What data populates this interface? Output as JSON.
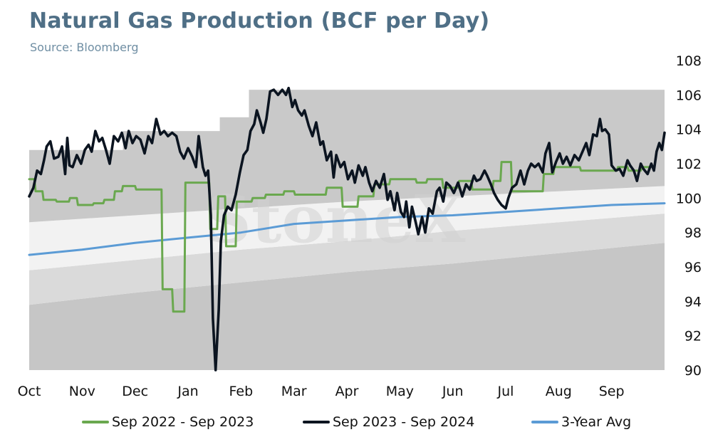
{
  "header": {
    "title": "Natural Gas Production (BCF per Day)",
    "subtitle": "Source: Bloomberg"
  },
  "watermark": "StoneX",
  "chart_data": {
    "type": "line",
    "title": "Natural Gas Production (BCF per Day)",
    "subtitle": "Source: Bloomberg",
    "xlabel": "",
    "ylabel": "",
    "y_axis_side": "right",
    "ylim": [
      90,
      108
    ],
    "xlim": [
      0,
      12
    ],
    "y_ticks": [
      90,
      92,
      94,
      96,
      98,
      100,
      102,
      104,
      106,
      108
    ],
    "categories": [
      "Oct",
      "Nov",
      "Dec",
      "Jan",
      "Feb",
      "Mar",
      "Apr",
      "May",
      "Jun",
      "Jul",
      "Aug",
      "Sep"
    ],
    "grid": false,
    "legend_position": "bottom",
    "bands": {
      "min": [
        [
          0,
          93.8
        ],
        [
          2,
          94.5
        ],
        [
          4,
          95.1
        ],
        [
          6,
          95.7
        ],
        [
          8,
          96.2
        ],
        [
          10,
          96.8
        ],
        [
          12,
          97.4
        ]
      ],
      "avg_low": [
        [
          0,
          95.8
        ],
        [
          2,
          96.4
        ],
        [
          4,
          97.0
        ],
        [
          6,
          97.5
        ],
        [
          8,
          98.1
        ],
        [
          10,
          98.6
        ],
        [
          12,
          99.1
        ]
      ],
      "avg_high": [
        [
          0,
          98.6
        ],
        [
          2,
          99.0
        ],
        [
          4,
          99.4
        ],
        [
          6,
          99.8
        ],
        [
          8,
          100.1
        ],
        [
          10,
          100.4
        ],
        [
          12,
          100.7
        ]
      ],
      "max": [
        [
          0,
          102.8
        ],
        [
          1.77,
          102.8
        ],
        [
          1.77,
          103.9
        ],
        [
          3.6,
          103.9
        ],
        [
          3.6,
          104.7
        ],
        [
          4.15,
          104.7
        ],
        [
          4.15,
          106.3
        ],
        [
          12,
          106.3
        ]
      ]
    },
    "series": [
      {
        "name": "Sep 2022 - Sep 2023",
        "color": "#6aa84f",
        "points": [
          [
            0,
            101.1
          ],
          [
            0.1,
            101.1
          ],
          [
            0.12,
            100.4
          ],
          [
            0.25,
            100.4
          ],
          [
            0.27,
            99.9
          ],
          [
            0.5,
            99.9
          ],
          [
            0.52,
            99.8
          ],
          [
            0.75,
            99.8
          ],
          [
            0.77,
            100.0
          ],
          [
            0.9,
            100.0
          ],
          [
            0.92,
            99.6
          ],
          [
            1.2,
            99.6
          ],
          [
            1.22,
            99.7
          ],
          [
            1.4,
            99.7
          ],
          [
            1.42,
            99.9
          ],
          [
            1.6,
            99.9
          ],
          [
            1.62,
            100.4
          ],
          [
            1.75,
            100.4
          ],
          [
            1.77,
            100.7
          ],
          [
            2.0,
            100.7
          ],
          [
            2.02,
            100.5
          ],
          [
            2.5,
            100.5
          ],
          [
            2.52,
            94.7
          ],
          [
            2.7,
            94.7
          ],
          [
            2.72,
            93.4
          ],
          [
            2.93,
            93.4
          ],
          [
            2.95,
            100.9
          ],
          [
            3.4,
            100.9
          ],
          [
            3.42,
            98.2
          ],
          [
            3.55,
            98.2
          ],
          [
            3.57,
            100.1
          ],
          [
            3.7,
            100.1
          ],
          [
            3.72,
            97.2
          ],
          [
            3.9,
            97.2
          ],
          [
            3.92,
            99.8
          ],
          [
            4.2,
            99.8
          ],
          [
            4.22,
            100.0
          ],
          [
            4.45,
            100.0
          ],
          [
            4.47,
            100.2
          ],
          [
            4.8,
            100.2
          ],
          [
            4.82,
            100.4
          ],
          [
            5.0,
            100.4
          ],
          [
            5.02,
            100.2
          ],
          [
            5.6,
            100.2
          ],
          [
            5.62,
            100.6
          ],
          [
            5.9,
            100.6
          ],
          [
            5.92,
            99.5
          ],
          [
            6.2,
            99.5
          ],
          [
            6.22,
            100.1
          ],
          [
            6.5,
            100.1
          ],
          [
            6.52,
            100.8
          ],
          [
            6.8,
            100.8
          ],
          [
            6.82,
            101.1
          ],
          [
            7.3,
            101.1
          ],
          [
            7.32,
            100.9
          ],
          [
            7.5,
            100.9
          ],
          [
            7.52,
            101.1
          ],
          [
            7.8,
            101.1
          ],
          [
            7.82,
            100.6
          ],
          [
            8.1,
            100.6
          ],
          [
            8.12,
            101.0
          ],
          [
            8.35,
            101.0
          ],
          [
            8.37,
            100.5
          ],
          [
            8.75,
            100.5
          ],
          [
            8.77,
            101.0
          ],
          [
            8.9,
            101.0
          ],
          [
            8.92,
            102.1
          ],
          [
            9.1,
            102.1
          ],
          [
            9.12,
            100.4
          ],
          [
            9.7,
            100.4
          ],
          [
            9.72,
            101.4
          ],
          [
            9.9,
            101.4
          ],
          [
            9.92,
            101.8
          ],
          [
            10.4,
            101.8
          ],
          [
            10.42,
            101.6
          ],
          [
            11.1,
            101.6
          ],
          [
            11.12,
            101.8
          ],
          [
            11.3,
            101.8
          ],
          [
            11.32,
            101.6
          ],
          [
            11.55,
            101.6
          ],
          [
            11.57,
            101.8
          ],
          [
            11.7,
            101.8
          ]
        ]
      },
      {
        "name": "Sep 2023 - Sep 2024",
        "color": "#0b1420",
        "points": [
          [
            0,
            100.1
          ],
          [
            0.08,
            100.6
          ],
          [
            0.15,
            101.6
          ],
          [
            0.22,
            101.4
          ],
          [
            0.28,
            102.2
          ],
          [
            0.33,
            103.0
          ],
          [
            0.4,
            103.3
          ],
          [
            0.47,
            102.3
          ],
          [
            0.55,
            102.4
          ],
          [
            0.62,
            103.0
          ],
          [
            0.68,
            101.4
          ],
          [
            0.72,
            103.5
          ],
          [
            0.76,
            101.9
          ],
          [
            0.82,
            101.8
          ],
          [
            0.9,
            102.5
          ],
          [
            0.98,
            102.0
          ],
          [
            1.05,
            102.8
          ],
          [
            1.12,
            103.1
          ],
          [
            1.18,
            102.7
          ],
          [
            1.25,
            103.9
          ],
          [
            1.32,
            103.3
          ],
          [
            1.38,
            103.5
          ],
          [
            1.45,
            102.8
          ],
          [
            1.52,
            102.0
          ],
          [
            1.6,
            103.6
          ],
          [
            1.68,
            103.3
          ],
          [
            1.75,
            103.8
          ],
          [
            1.82,
            102.9
          ],
          [
            1.88,
            103.9
          ],
          [
            1.95,
            103.2
          ],
          [
            2.02,
            103.6
          ],
          [
            2.1,
            103.4
          ],
          [
            2.18,
            102.6
          ],
          [
            2.25,
            103.6
          ],
          [
            2.32,
            103.2
          ],
          [
            2.4,
            104.6
          ],
          [
            2.48,
            103.7
          ],
          [
            2.55,
            103.9
          ],
          [
            2.62,
            103.6
          ],
          [
            2.7,
            103.8
          ],
          [
            2.78,
            103.6
          ],
          [
            2.85,
            102.7
          ],
          [
            2.92,
            102.3
          ],
          [
            3.0,
            102.9
          ],
          [
            3.08,
            102.4
          ],
          [
            3.15,
            101.8
          ],
          [
            3.2,
            103.6
          ],
          [
            3.28,
            101.8
          ],
          [
            3.33,
            101.3
          ],
          [
            3.38,
            101.6
          ],
          [
            3.43,
            99.0
          ],
          [
            3.47,
            93.0
          ],
          [
            3.52,
            90.0
          ],
          [
            3.58,
            93.5
          ],
          [
            3.62,
            97.5
          ],
          [
            3.68,
            99.0
          ],
          [
            3.75,
            99.5
          ],
          [
            3.82,
            99.3
          ],
          [
            3.9,
            100.2
          ],
          [
            3.98,
            101.5
          ],
          [
            4.05,
            102.5
          ],
          [
            4.12,
            102.8
          ],
          [
            4.18,
            103.9
          ],
          [
            4.25,
            104.3
          ],
          [
            4.3,
            105.1
          ],
          [
            4.37,
            104.4
          ],
          [
            4.42,
            103.8
          ],
          [
            4.48,
            104.6
          ],
          [
            4.55,
            106.2
          ],
          [
            4.62,
            106.3
          ],
          [
            4.7,
            106.0
          ],
          [
            4.78,
            106.3
          ],
          [
            4.85,
            106.0
          ],
          [
            4.9,
            106.4
          ],
          [
            4.97,
            105.3
          ],
          [
            5.02,
            105.7
          ],
          [
            5.08,
            105.1
          ],
          [
            5.15,
            104.8
          ],
          [
            5.2,
            105.1
          ],
          [
            5.28,
            104.2
          ],
          [
            5.35,
            103.6
          ],
          [
            5.42,
            104.4
          ],
          [
            5.5,
            103.1
          ],
          [
            5.55,
            103.3
          ],
          [
            5.62,
            102.2
          ],
          [
            5.7,
            102.7
          ],
          [
            5.75,
            101.2
          ],
          [
            5.8,
            102.5
          ],
          [
            5.88,
            101.8
          ],
          [
            5.95,
            102.1
          ],
          [
            6.02,
            101.1
          ],
          [
            6.1,
            101.6
          ],
          [
            6.15,
            100.9
          ],
          [
            6.22,
            101.9
          ],
          [
            6.3,
            101.3
          ],
          [
            6.35,
            101.8
          ],
          [
            6.42,
            100.9
          ],
          [
            6.48,
            100.4
          ],
          [
            6.55,
            101.0
          ],
          [
            6.62,
            100.6
          ],
          [
            6.7,
            101.4
          ],
          [
            6.77,
            99.9
          ],
          [
            6.82,
            100.4
          ],
          [
            6.9,
            99.3
          ],
          [
            6.95,
            100.3
          ],
          [
            7.02,
            99.2
          ],
          [
            7.08,
            98.9
          ],
          [
            7.12,
            99.8
          ],
          [
            7.18,
            98.3
          ],
          [
            7.23,
            99.5
          ],
          [
            7.3,
            98.6
          ],
          [
            7.35,
            97.9
          ],
          [
            7.42,
            98.9
          ],
          [
            7.48,
            98.0
          ],
          [
            7.55,
            99.4
          ],
          [
            7.62,
            99.1
          ],
          [
            7.7,
            100.4
          ],
          [
            7.75,
            100.6
          ],
          [
            7.82,
            99.8
          ],
          [
            7.88,
            100.9
          ],
          [
            7.95,
            100.7
          ],
          [
            8.02,
            100.3
          ],
          [
            8.1,
            100.9
          ],
          [
            8.18,
            100.1
          ],
          [
            8.25,
            100.8
          ],
          [
            8.32,
            100.5
          ],
          [
            8.4,
            101.3
          ],
          [
            8.45,
            101.0
          ],
          [
            8.52,
            101.1
          ],
          [
            8.6,
            101.6
          ],
          [
            8.65,
            101.3
          ],
          [
            8.72,
            100.8
          ],
          [
            8.78,
            100.3
          ],
          [
            8.85,
            99.9
          ],
          [
            8.92,
            99.6
          ],
          [
            9.0,
            99.4
          ],
          [
            9.05,
            100.0
          ],
          [
            9.12,
            100.6
          ],
          [
            9.2,
            100.8
          ],
          [
            9.28,
            101.6
          ],
          [
            9.35,
            100.8
          ],
          [
            9.42,
            101.6
          ],
          [
            9.48,
            102.0
          ],
          [
            9.55,
            101.8
          ],
          [
            9.62,
            102.0
          ],
          [
            9.7,
            101.5
          ],
          [
            9.75,
            102.6
          ],
          [
            9.82,
            103.2
          ],
          [
            9.88,
            101.5
          ],
          [
            9.95,
            102.1
          ],
          [
            10.02,
            102.6
          ],
          [
            10.08,
            102.0
          ],
          [
            10.15,
            102.4
          ],
          [
            10.22,
            101.9
          ],
          [
            10.3,
            102.5
          ],
          [
            10.38,
            102.2
          ],
          [
            10.45,
            102.7
          ],
          [
            10.52,
            103.2
          ],
          [
            10.58,
            102.5
          ],
          [
            10.65,
            103.7
          ],
          [
            10.72,
            103.6
          ],
          [
            10.78,
            104.6
          ],
          [
            10.82,
            103.9
          ],
          [
            10.88,
            104.0
          ],
          [
            10.95,
            103.7
          ],
          [
            11.0,
            101.9
          ],
          [
            11.08,
            101.6
          ],
          [
            11.15,
            101.7
          ],
          [
            11.22,
            101.3
          ],
          [
            11.3,
            102.2
          ],
          [
            11.35,
            101.9
          ],
          [
            11.42,
            101.6
          ],
          [
            11.48,
            101.0
          ],
          [
            11.55,
            102.0
          ],
          [
            11.6,
            101.7
          ],
          [
            11.68,
            101.4
          ],
          [
            11.75,
            102.0
          ],
          [
            11.8,
            101.6
          ],
          [
            11.85,
            102.7
          ],
          [
            11.9,
            103.2
          ],
          [
            11.95,
            102.8
          ],
          [
            12.0,
            103.8
          ]
        ]
      },
      {
        "name": "3-Year Avg",
        "color": "#5b9bd5",
        "points": [
          [
            0,
            96.7
          ],
          [
            1,
            97.0
          ],
          [
            2,
            97.4
          ],
          [
            3,
            97.7
          ],
          [
            4,
            98.0
          ],
          [
            5,
            98.5
          ],
          [
            6,
            98.7
          ],
          [
            7,
            98.9
          ],
          [
            8,
            99.0
          ],
          [
            9,
            99.2
          ],
          [
            10,
            99.4
          ],
          [
            11,
            99.6
          ],
          [
            12,
            99.7
          ]
        ]
      }
    ]
  }
}
